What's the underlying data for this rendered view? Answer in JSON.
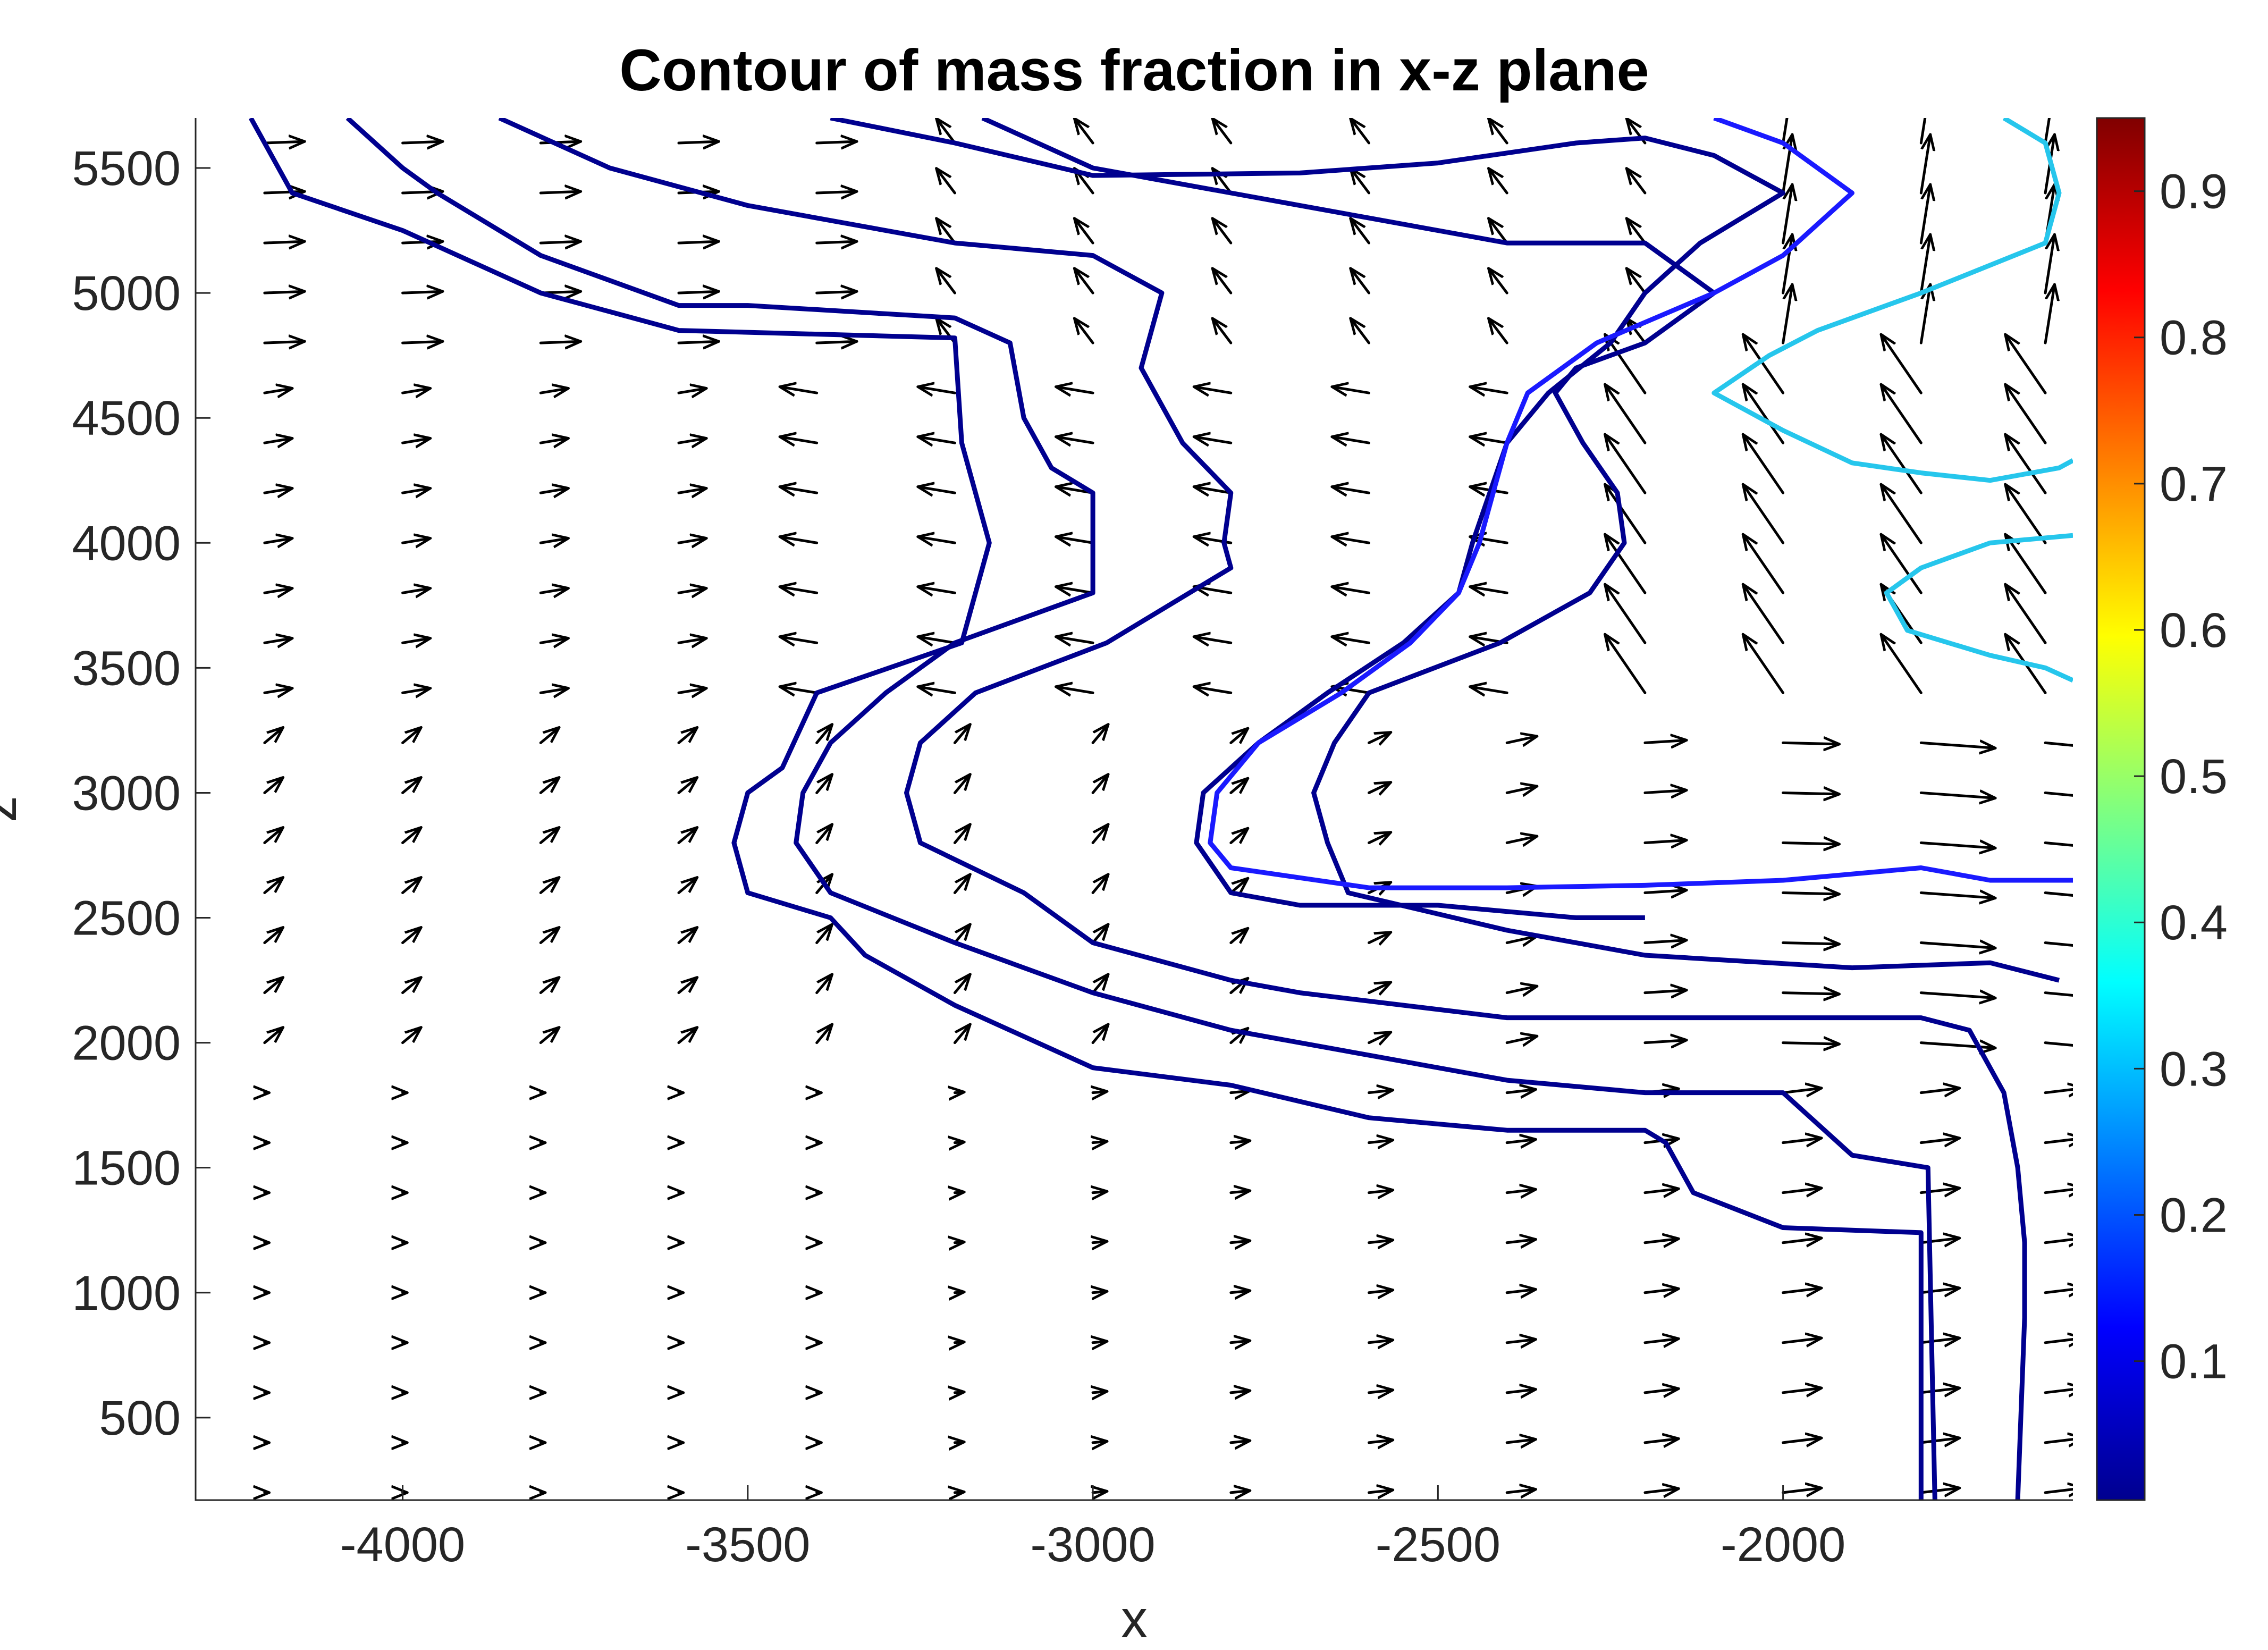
{
  "chart_data": {
    "type": "contour",
    "title": "Contour of mass fraction in x-z plane",
    "xlabel": "x",
    "ylabel": "z",
    "xlim": [
      -4300,
      -1580
    ],
    "ylim": [
      170,
      5700
    ],
    "x_ticks": [
      -4000,
      -3500,
      -3000,
      -2500,
      -2000
    ],
    "y_ticks": [
      500,
      1000,
      1500,
      2000,
      2500,
      3000,
      3500,
      4000,
      4500,
      5000,
      5500
    ],
    "grid": false,
    "colorbar": {
      "colormap": "jet",
      "range": [
        0.005,
        0.95
      ],
      "ticks": [
        0.1,
        0.2,
        0.3,
        0.4,
        0.5,
        0.6,
        0.7,
        0.8,
        0.9
      ],
      "position": "right"
    },
    "contours": [
      {
        "level": 0.01,
        "color": "#00008f",
        "points": [
          [
            -4220,
            5700
          ],
          [
            -4160,
            5400
          ],
          [
            -4000,
            5250
          ],
          [
            -3800,
            5000
          ],
          [
            -3600,
            4850
          ],
          [
            -3200,
            4820
          ],
          [
            -3190,
            4400
          ],
          [
            -3150,
            4000
          ],
          [
            -3190,
            3600
          ],
          [
            -3400,
            3400
          ],
          [
            -3450,
            3100
          ],
          [
            -3500,
            3000
          ],
          [
            -3520,
            2800
          ],
          [
            -3500,
            2600
          ],
          [
            -3380,
            2500
          ],
          [
            -3330,
            2350
          ],
          [
            -3200,
            2150
          ],
          [
            -3000,
            1900
          ],
          [
            -2800,
            1830
          ],
          [
            -2600,
            1700
          ],
          [
            -2400,
            1650
          ],
          [
            -2200,
            1650
          ],
          [
            -2170,
            1600
          ],
          [
            -2130,
            1400
          ],
          [
            -2000,
            1260
          ],
          [
            -1800,
            1240
          ],
          [
            -1800,
            170
          ]
        ]
      },
      {
        "level": 0.01,
        "color": "#00008f",
        "points": [
          [
            -4080,
            5700
          ],
          [
            -4000,
            5500
          ],
          [
            -3950,
            5400
          ],
          [
            -3800,
            5150
          ],
          [
            -3600,
            4950
          ],
          [
            -3500,
            4950
          ],
          [
            -3200,
            4900
          ],
          [
            -3120,
            4800
          ],
          [
            -3100,
            4500
          ],
          [
            -3060,
            4300
          ],
          [
            -3000,
            4200
          ],
          [
            -3000,
            3800
          ],
          [
            -3200,
            3600
          ],
          [
            -3300,
            3400
          ],
          [
            -3380,
            3200
          ],
          [
            -3420,
            3000
          ],
          [
            -3430,
            2800
          ],
          [
            -3380,
            2600
          ],
          [
            -3200,
            2400
          ],
          [
            -3000,
            2200
          ],
          [
            -2800,
            2050
          ],
          [
            -2600,
            1950
          ],
          [
            -2400,
            1850
          ],
          [
            -2200,
            1800
          ],
          [
            -2000,
            1800
          ],
          [
            -1900,
            1550
          ],
          [
            -1790,
            1500
          ],
          [
            -1780,
            170
          ]
        ]
      },
      {
        "level": 0.01,
        "color": "#00008f",
        "points": [
          [
            -3860,
            5700
          ],
          [
            -3700,
            5500
          ],
          [
            -3500,
            5350
          ],
          [
            -3200,
            5200
          ],
          [
            -3000,
            5150
          ],
          [
            -2900,
            5000
          ],
          [
            -2930,
            4700
          ],
          [
            -2870,
            4400
          ],
          [
            -2800,
            4200
          ],
          [
            -2810,
            4000
          ],
          [
            -2800,
            3900
          ],
          [
            -2980,
            3600
          ],
          [
            -3170,
            3400
          ],
          [
            -3250,
            3200
          ],
          [
            -3270,
            3000
          ],
          [
            -3250,
            2800
          ],
          [
            -3100,
            2600
          ],
          [
            -3000,
            2400
          ],
          [
            -2800,
            2250
          ],
          [
            -2700,
            2200
          ],
          [
            -2400,
            2100
          ],
          [
            -2200,
            2100
          ],
          [
            -1800,
            2100
          ],
          [
            -1730,
            2050
          ],
          [
            -1680,
            1800
          ],
          [
            -1660,
            1500
          ],
          [
            -1650,
            1200
          ],
          [
            -1650,
            900
          ],
          [
            -1660,
            170
          ]
        ]
      },
      {
        "level": 0.01,
        "color": "#00008f",
        "points": [
          [
            -3160,
            5700
          ],
          [
            -3000,
            5500
          ],
          [
            -2800,
            5400
          ],
          [
            -2600,
            5300
          ],
          [
            -2400,
            5200
          ],
          [
            -2200,
            5200
          ],
          [
            -2100,
            5000
          ],
          [
            -2200,
            4800
          ],
          [
            -2300,
            4700
          ],
          [
            -2330,
            4600
          ],
          [
            -2290,
            4400
          ],
          [
            -2240,
            4200
          ],
          [
            -2230,
            4000
          ],
          [
            -2280,
            3800
          ],
          [
            -2410,
            3600
          ],
          [
            -2600,
            3400
          ],
          [
            -2650,
            3200
          ],
          [
            -2680,
            3000
          ],
          [
            -2660,
            2800
          ],
          [
            -2630,
            2600
          ],
          [
            -2400,
            2450
          ],
          [
            -2200,
            2350
          ],
          [
            -1900,
            2300
          ],
          [
            -1700,
            2320
          ],
          [
            -1600,
            2250
          ]
        ]
      },
      {
        "level": 0.01,
        "color": "#00008f",
        "points": [
          [
            -3380,
            5700
          ],
          [
            -3200,
            5600
          ],
          [
            -3000,
            5470
          ],
          [
            -2700,
            5480
          ],
          [
            -2500,
            5520
          ],
          [
            -2300,
            5600
          ],
          [
            -2200,
            5620
          ],
          [
            -2100,
            5550
          ],
          [
            -2000,
            5400
          ],
          [
            -2120,
            5200
          ],
          [
            -2200,
            5000
          ],
          [
            -2250,
            4800
          ],
          [
            -2340,
            4600
          ],
          [
            -2400,
            4400
          ],
          [
            -2450,
            4000
          ],
          [
            -2470,
            3800
          ],
          [
            -2550,
            3600
          ],
          [
            -2660,
            3400
          ],
          [
            -2760,
            3200
          ],
          [
            -2840,
            3000
          ],
          [
            -2850,
            2800
          ],
          [
            -2800,
            2600
          ],
          [
            -2700,
            2550
          ],
          [
            -2500,
            2550
          ],
          [
            -2300,
            2500
          ],
          [
            -2200,
            2500
          ]
        ]
      },
      {
        "level": 0.1,
        "color": "#1a1aff",
        "points": [
          [
            -2100,
            5700
          ],
          [
            -2000,
            5600
          ],
          [
            -1900,
            5400
          ],
          [
            -2000,
            5150
          ],
          [
            -2100,
            5000
          ],
          [
            -2270,
            4800
          ],
          [
            -2370,
            4600
          ],
          [
            -2400,
            4400
          ],
          [
            -2420,
            4200
          ],
          [
            -2440,
            4000
          ],
          [
            -2470,
            3800
          ],
          [
            -2540,
            3600
          ],
          [
            -2640,
            3400
          ],
          [
            -2760,
            3200
          ],
          [
            -2820,
            3000
          ],
          [
            -2830,
            2800
          ],
          [
            -2800,
            2700
          ],
          [
            -2600,
            2620
          ],
          [
            -2400,
            2620
          ],
          [
            -2200,
            2630
          ],
          [
            -2000,
            2650
          ],
          [
            -1800,
            2700
          ],
          [
            -1700,
            2650
          ],
          [
            -1580,
            2650
          ]
        ]
      },
      {
        "level": 0.3,
        "color": "#26c6ec",
        "points": [
          [
            -1680,
            5700
          ],
          [
            -1620,
            5600
          ],
          [
            -1600,
            5400
          ],
          [
            -1620,
            5200
          ],
          [
            -1800,
            5000
          ],
          [
            -1950,
            4850
          ],
          [
            -2020,
            4750
          ],
          [
            -2100,
            4600
          ],
          [
            -2000,
            4450
          ],
          [
            -1900,
            4320
          ],
          [
            -1800,
            4280
          ],
          [
            -1700,
            4250
          ],
          [
            -1600,
            4300
          ],
          [
            -1580,
            4330
          ]
        ]
      },
      {
        "level": 0.3,
        "color": "#26c6ec",
        "points": [
          [
            -1580,
            4030
          ],
          [
            -1700,
            4000
          ],
          [
            -1800,
            3900
          ],
          [
            -1850,
            3800
          ],
          [
            -1820,
            3650
          ],
          [
            -1700,
            3550
          ],
          [
            -1620,
            3500
          ],
          [
            -1580,
            3450
          ]
        ]
      }
    ],
    "vector_field": {
      "description": "quiver plot of velocity vectors on a regular grid",
      "x": [
        -4200,
        -4000,
        -3800,
        -3600,
        -3400,
        -3200,
        -3000,
        -2800,
        -2600,
        -2400,
        -2200,
        -2000,
        -1800,
        -1620
      ],
      "z": [
        200,
        400,
        600,
        800,
        1000,
        1200,
        1400,
        1600,
        1800,
        2000,
        2200,
        2400,
        2600,
        2800,
        3000,
        3200,
        3400,
        3600,
        3800,
        4000,
        4200,
        4400,
        4600,
        4800,
        5000,
        5200,
        5400,
        5600
      ]
    }
  }
}
